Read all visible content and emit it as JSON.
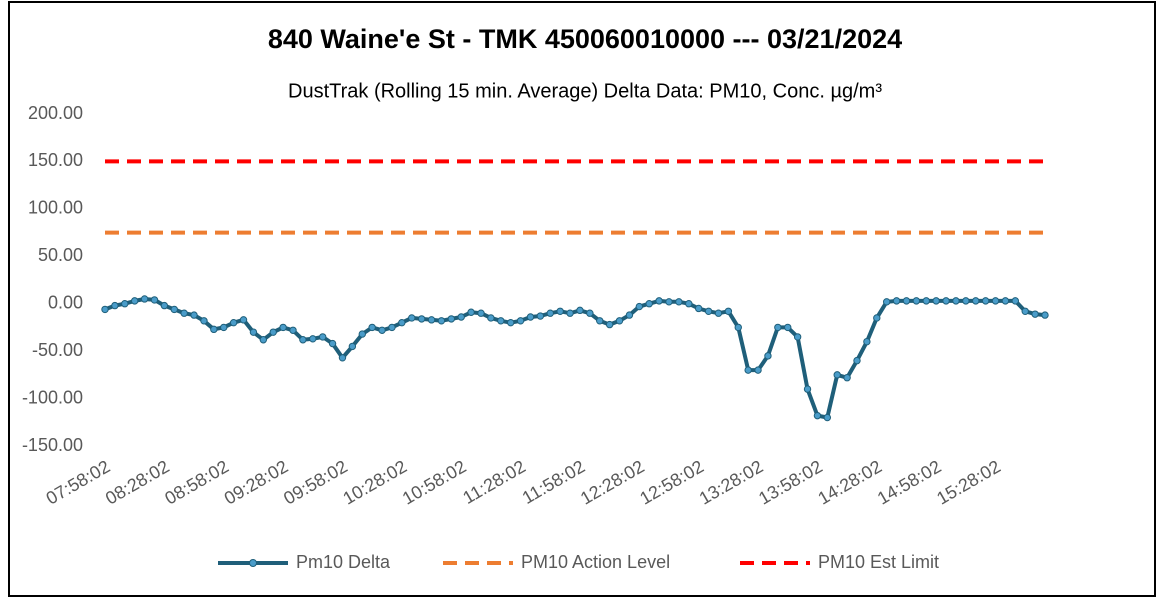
{
  "chart_data": {
    "type": "line",
    "title": "840 Waine'e St - TMK 450060010000 --- 03/21/2024",
    "subtitle": "DustTrak (Rolling 15 min. Average) Delta Data: PM10, Conc. µg/m³",
    "categories": [
      "07:58:02",
      null,
      null,
      null,
      null,
      null,
      "08:28:02",
      null,
      null,
      null,
      null,
      null,
      "08:58:02",
      null,
      null,
      null,
      null,
      null,
      "09:28:02",
      null,
      null,
      null,
      null,
      null,
      "09:58:02",
      null,
      null,
      null,
      null,
      null,
      "10:28:02",
      null,
      null,
      null,
      null,
      null,
      "10:58:02",
      null,
      null,
      null,
      null,
      null,
      "11:28:02",
      null,
      null,
      null,
      null,
      null,
      "11:58:02",
      null,
      null,
      null,
      null,
      null,
      "12:28:02",
      null,
      null,
      null,
      null,
      null,
      "12:58:02",
      null,
      null,
      null,
      null,
      null,
      "13:28:02",
      null,
      null,
      null,
      null,
      null,
      "13:58:02",
      null,
      null,
      null,
      null,
      null,
      "14:28:02",
      null,
      null,
      null,
      null,
      null,
      "14:58:02",
      null,
      null,
      null,
      null,
      null,
      "15:28:02",
      null,
      null,
      null,
      null,
      null
    ],
    "series": [
      {
        "name": "Pm10 Delta",
        "color": "#1f5f7a",
        "marker_color": "#4a9cc9",
        "dashed": false,
        "values": [
          -6,
          -2,
          0,
          3,
          5,
          4,
          -2,
          -6,
          -10,
          -12,
          -18,
          -27,
          -25,
          -20,
          -17,
          -30,
          -38,
          -30,
          -25,
          -28,
          -38,
          -37,
          -35,
          -42,
          -57,
          -45,
          -32,
          -25,
          -28,
          -25,
          -20,
          -15,
          -16,
          -17,
          -18,
          -16,
          -14,
          -9,
          -10,
          -15,
          -18,
          -20,
          -18,
          -14,
          -13,
          -10,
          -8,
          -10,
          -7,
          -10,
          -18,
          -22,
          -18,
          -12,
          -3,
          0,
          3,
          2,
          2,
          0,
          -5,
          -8,
          -10,
          -8,
          -25,
          -70,
          -70,
          -55,
          -25,
          -25,
          -35,
          -90,
          -118,
          -120,
          -75,
          -78,
          -60,
          -40,
          -15,
          2,
          3,
          3,
          3,
          3,
          3,
          3,
          3,
          3,
          3,
          3,
          3,
          3,
          3,
          -8,
          -11,
          -12
        ]
      },
      {
        "name": "PM10 Action Level",
        "color": "#ed7d31",
        "dashed": true,
        "values": [
          75,
          75,
          75,
          75,
          75,
          75,
          75,
          75,
          75,
          75,
          75,
          75,
          75,
          75,
          75,
          75,
          75,
          75,
          75,
          75,
          75,
          75,
          75,
          75,
          75,
          75,
          75,
          75,
          75,
          75,
          75,
          75,
          75,
          75,
          75,
          75,
          75,
          75,
          75,
          75,
          75,
          75,
          75,
          75,
          75,
          75,
          75,
          75,
          75,
          75,
          75,
          75,
          75,
          75,
          75,
          75,
          75,
          75,
          75,
          75,
          75,
          75,
          75,
          75,
          75,
          75,
          75,
          75,
          75,
          75,
          75,
          75,
          75,
          75,
          75,
          75,
          75,
          75,
          75,
          75,
          75,
          75,
          75,
          75,
          75,
          75,
          75,
          75,
          75,
          75,
          75,
          75,
          75,
          75,
          75,
          75
        ]
      },
      {
        "name": "PM10 Est Limit",
        "color": "#ff0000",
        "dashed": true,
        "values": [
          150,
          150,
          150,
          150,
          150,
          150,
          150,
          150,
          150,
          150,
          150,
          150,
          150,
          150,
          150,
          150,
          150,
          150,
          150,
          150,
          150,
          150,
          150,
          150,
          150,
          150,
          150,
          150,
          150,
          150,
          150,
          150,
          150,
          150,
          150,
          150,
          150,
          150,
          150,
          150,
          150,
          150,
          150,
          150,
          150,
          150,
          150,
          150,
          150,
          150,
          150,
          150,
          150,
          150,
          150,
          150,
          150,
          150,
          150,
          150,
          150,
          150,
          150,
          150,
          150,
          150,
          150,
          150,
          150,
          150,
          150,
          150,
          150,
          150,
          150,
          150,
          150,
          150,
          150,
          150,
          150,
          150,
          150,
          150,
          150,
          150,
          150,
          150,
          150,
          150,
          150,
          150,
          150,
          150,
          150,
          150
        ]
      }
    ],
    "ylim": [
      -150,
      200
    ],
    "yticks": [
      {
        "value": -150,
        "label": "-150.00"
      },
      {
        "value": -100,
        "label": "-100.00"
      },
      {
        "value": -50,
        "label": "-50.00"
      },
      {
        "value": 0,
        "label": "0.00"
      },
      {
        "value": 50,
        "label": "50.00"
      },
      {
        "value": 100,
        "label": "100.00"
      },
      {
        "value": 150,
        "label": "150.00"
      },
      {
        "value": 200,
        "label": "200.00"
      }
    ],
    "grid": false,
    "legend": "bottom"
  }
}
